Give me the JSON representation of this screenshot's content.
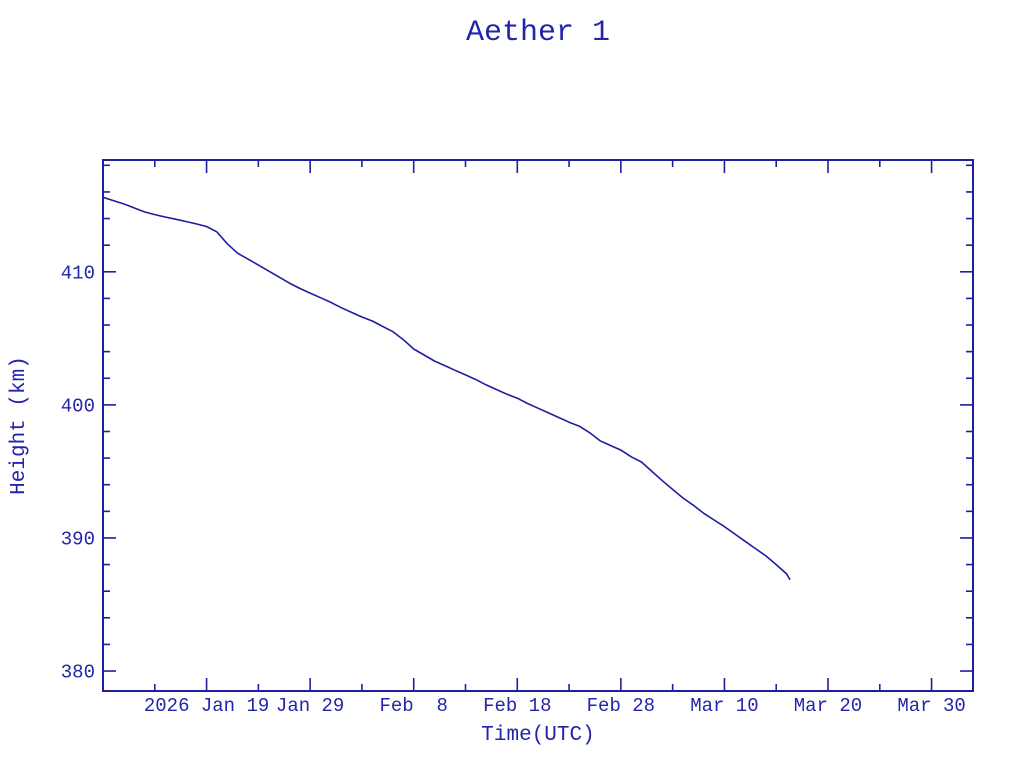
{
  "page": {
    "title": "Aether 1",
    "background_color": "#ffffff"
  },
  "chart_data": {
    "type": "line",
    "title": "Aether 1",
    "xlabel": "Time(UTC)",
    "ylabel": "Height (km)",
    "x_unit": "days (t=0 corresponds to left edge of axis, 10 days before first labeled tick)",
    "xlim": [
      0,
      84
    ],
    "ylim": [
      378.5,
      418.4
    ],
    "grid": false,
    "legend": "none",
    "line_color": "#1e1e9e",
    "text_color": "#2424aa",
    "frame_color": "#1e1e9e",
    "x_major_ticks": [
      {
        "day": 10,
        "label": "2026 Jan 19"
      },
      {
        "day": 20,
        "label": "Jan 29"
      },
      {
        "day": 30,
        "label": "Feb  8"
      },
      {
        "day": 40,
        "label": "Feb 18"
      },
      {
        "day": 50,
        "label": "Feb 28"
      },
      {
        "day": 60,
        "label": "Mar 10"
      },
      {
        "day": 70,
        "label": "Mar 20"
      },
      {
        "day": 80,
        "label": "Mar 30"
      }
    ],
    "x_minor_tick_days": [
      5,
      15,
      25,
      35,
      45,
      55,
      65,
      75
    ],
    "y_major_ticks": [
      {
        "value": 380,
        "label": "380"
      },
      {
        "value": 390,
        "label": "390"
      },
      {
        "value": 400,
        "label": "400"
      },
      {
        "value": 410,
        "label": "410"
      }
    ],
    "y_minor_tick_values": [
      382,
      384,
      386,
      388,
      392,
      394,
      396,
      398,
      402,
      404,
      406,
      408,
      412,
      414,
      416,
      418
    ],
    "series": [
      {
        "name": "Aether 1 height",
        "points": [
          [
            0,
            415.6
          ],
          [
            1,
            415.35
          ],
          [
            2,
            415.1
          ],
          [
            3,
            414.8
          ],
          [
            4,
            414.5
          ],
          [
            5,
            414.3
          ],
          [
            6,
            414.12
          ],
          [
            7,
            413.95
          ],
          [
            8,
            413.78
          ],
          [
            9,
            413.6
          ],
          [
            10,
            413.4
          ],
          [
            11,
            413.0
          ],
          [
            12,
            412.1
          ],
          [
            13,
            411.4
          ],
          [
            14,
            410.95
          ],
          [
            15,
            410.5
          ],
          [
            16,
            410.05
          ],
          [
            17,
            409.6
          ],
          [
            18,
            409.15
          ],
          [
            19,
            408.75
          ],
          [
            20,
            408.4
          ],
          [
            21,
            408.05
          ],
          [
            22,
            407.7
          ],
          [
            23,
            407.3
          ],
          [
            24,
            406.95
          ],
          [
            25,
            406.6
          ],
          [
            26,
            406.3
          ],
          [
            27,
            405.9
          ],
          [
            28,
            405.5
          ],
          [
            29,
            404.9
          ],
          [
            30,
            404.2
          ],
          [
            31,
            403.75
          ],
          [
            32,
            403.3
          ],
          [
            33,
            402.95
          ],
          [
            34,
            402.6
          ],
          [
            35,
            402.25
          ],
          [
            36,
            401.9
          ],
          [
            37,
            401.5
          ],
          [
            38,
            401.15
          ],
          [
            39,
            400.8
          ],
          [
            40,
            400.5
          ],
          [
            41,
            400.1
          ],
          [
            42,
            399.75
          ],
          [
            43,
            399.4
          ],
          [
            44,
            399.05
          ],
          [
            45,
            398.7
          ],
          [
            46,
            398.4
          ],
          [
            47,
            397.9
          ],
          [
            48,
            397.3
          ],
          [
            49,
            396.95
          ],
          [
            50,
            396.6
          ],
          [
            51,
            396.1
          ],
          [
            52,
            395.7
          ],
          [
            53,
            395.0
          ],
          [
            54,
            394.3
          ],
          [
            55,
            393.65
          ],
          [
            56,
            393.0
          ],
          [
            57,
            392.45
          ],
          [
            58,
            391.85
          ],
          [
            59,
            391.35
          ],
          [
            60,
            390.85
          ],
          [
            61,
            390.3
          ],
          [
            62,
            389.75
          ],
          [
            63,
            389.2
          ],
          [
            64,
            388.65
          ],
          [
            65,
            388.0
          ],
          [
            66,
            387.3
          ],
          [
            66.3,
            386.9
          ]
        ]
      }
    ]
  }
}
